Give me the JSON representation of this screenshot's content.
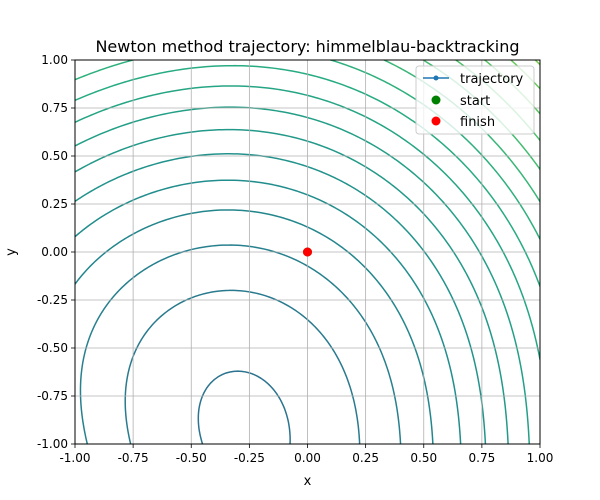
{
  "chart_data": {
    "type": "contour",
    "title": "Newton method trajectory: himmelblau-backtracking",
    "xlabel": "x",
    "ylabel": "y",
    "xlim": [
      -1.0,
      1.0
    ],
    "ylim": [
      -1.0,
      1.0
    ],
    "xticks": [
      "-1.00",
      "-0.75",
      "-0.50",
      "-0.25",
      "0.00",
      "0.25",
      "0.50",
      "0.75",
      "1.00"
    ],
    "yticks": [
      "-1.00",
      "-0.75",
      "-0.50",
      "-0.25",
      "0.00",
      "0.25",
      "0.50",
      "0.75",
      "1.00"
    ],
    "grid": true,
    "legend_position": "top-right",
    "colormap": "viridis",
    "function": "(x^2 + y - 11)^2 + (x + y^2 - 7)^2",
    "series": [
      {
        "name": "trajectory",
        "kind": "line",
        "color": "#1f77b4",
        "x": [
          0.0
        ],
        "y": [
          0.0
        ]
      },
      {
        "name": "start",
        "kind": "scatter",
        "color": "#008000",
        "x": [
          0.0
        ],
        "y": [
          0.0
        ]
      },
      {
        "name": "finish",
        "kind": "scatter",
        "color": "#ff0000",
        "x": [
          0.0
        ],
        "y": [
          0.0
        ]
      }
    ]
  }
}
